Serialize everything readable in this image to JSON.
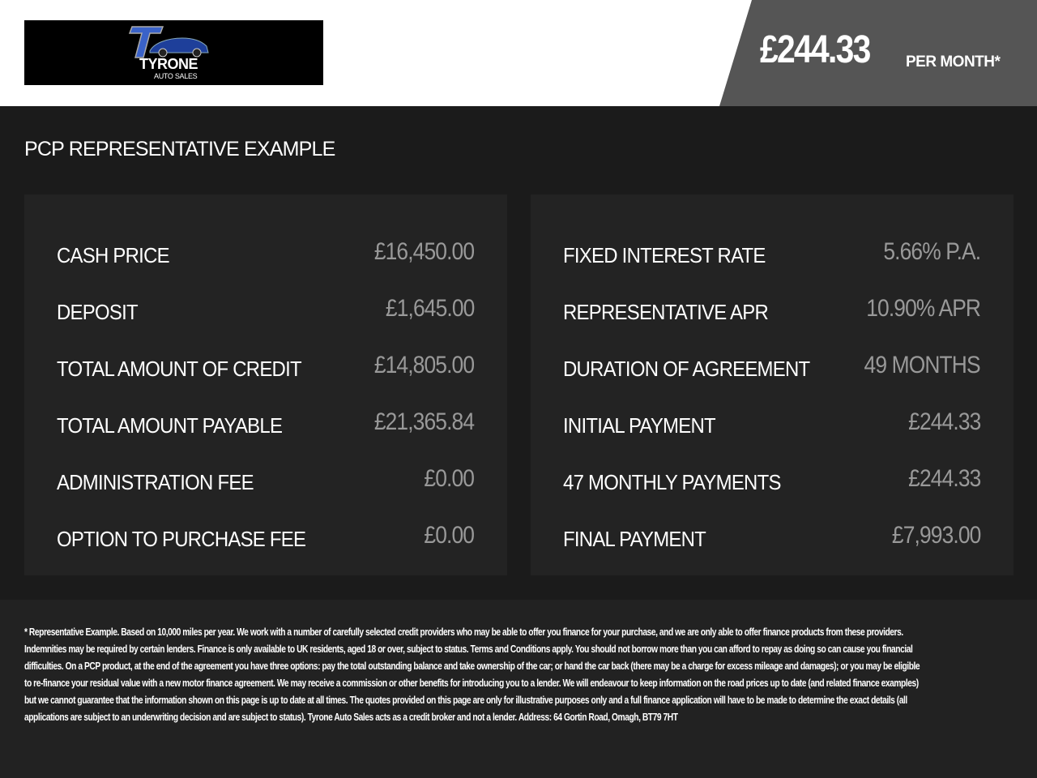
{
  "header": {
    "logo_text": "TYRONE",
    "logo_subtext": "AUTO SALES",
    "monthly_price": "£244.33",
    "per_month_label": "PER MONTH*"
  },
  "section_title": "PCP REPRESENTATIVE EXAMPLE",
  "left_panel": [
    {
      "label": "CASH PRICE",
      "value": "£16,450.00"
    },
    {
      "label": "DEPOSIT",
      "value": "£1,645.00"
    },
    {
      "label": "TOTAL AMOUNT OF CREDIT",
      "value": "£14,805.00"
    },
    {
      "label": "TOTAL AMOUNT PAYABLE",
      "value": "£21,365.84"
    },
    {
      "label": "ADMINISTRATION FEE",
      "value": "£0.00"
    },
    {
      "label": "OPTION TO PURCHASE FEE",
      "value": "£0.00"
    }
  ],
  "right_panel": [
    {
      "label": "FIXED INTEREST RATE",
      "value": "5.66% P.A."
    },
    {
      "label": "REPRESENTATIVE APR",
      "value": "10.90% APR"
    },
    {
      "label": "DURATION OF AGREEMENT",
      "value": "49 MONTHS"
    },
    {
      "label": "INITIAL PAYMENT",
      "value": "£244.33"
    },
    {
      "label": "47 MONTHLY PAYMENTS",
      "value": "£244.33"
    },
    {
      "label": "FINAL PAYMENT",
      "value": "£7,993.00"
    }
  ],
  "disclaimer": "* Representative Example. Based on 10,000 miles per year. We work with a number of carefully selected credit providers who may be able to offer you finance for your purchase, and we are only able to offer finance products from these providers. Indemnities may be required by certain lenders. Finance is only available to UK residents, aged 18 or over, subject to status. Terms and Conditions apply. You should not borrow more than you can afford to repay as doing so can cause you financial difficulties. On a PCP product, at the end of the agreement you have three options: pay the total outstanding balance and take ownership of the car; or hand the car back (there may be a charge for excess mileage and damages); or you may be eligible to re-finance your residual value with a new motor finance agreement. We may receive a commission or other benefits for introducing you to a lender. We will endeavour to keep information on the road prices up to date (and related finance examples) but we cannot guarantee that the information shown on this page is up to date at all times. The quotes provided on this page are only for illustrative purposes only and a full finance application will have to be made to determine the exact details (all applications are subject to an underwriting decision and are subject to status). Tyrone Auto Sales acts as a credit broker and not a lender. Address: 64 Gortin Road, Omagh, BT79 7HT",
  "colors": {
    "accent_blue": "#2a4fb0",
    "price_bg": "#555555",
    "panel_bg": "#232323",
    "value_text": "#999999"
  }
}
